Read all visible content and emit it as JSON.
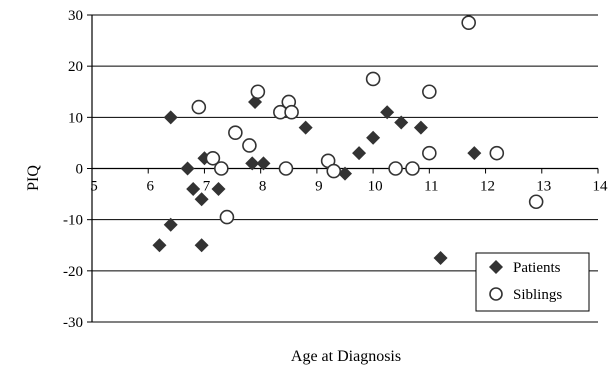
{
  "chart_data": {
    "type": "scatter",
    "title": "",
    "xlabel": "Age at Diagnosis",
    "ylabel": "PIQ",
    "xlim": [
      5,
      14
    ],
    "ylim": [
      -30,
      30
    ],
    "x_ticks": [
      "5",
      "6",
      "7",
      "8",
      "9",
      "10",
      "11",
      "12",
      "13",
      "14"
    ],
    "y_ticks": [
      "30",
      "20",
      "10",
      "0",
      "-10",
      "-20",
      "-30"
    ],
    "grid": "horizontal",
    "legend_position": "bottom-right",
    "series": [
      {
        "name": "Patients",
        "marker": "diamond-filled",
        "color": "#333333",
        "points": [
          [
            6.2,
            -15
          ],
          [
            6.4,
            -11
          ],
          [
            6.4,
            10
          ],
          [
            6.7,
            0
          ],
          [
            6.8,
            -4
          ],
          [
            6.95,
            -6
          ],
          [
            6.95,
            -15
          ],
          [
            7.0,
            2
          ],
          [
            7.25,
            -4
          ],
          [
            7.85,
            1
          ],
          [
            7.9,
            13
          ],
          [
            8.05,
            1
          ],
          [
            8.8,
            8
          ],
          [
            9.5,
            -1
          ],
          [
            9.75,
            3
          ],
          [
            10.0,
            6
          ],
          [
            10.25,
            11
          ],
          [
            10.5,
            9
          ],
          [
            10.85,
            8
          ],
          [
            11.2,
            -17.5
          ],
          [
            11.8,
            3
          ]
        ]
      },
      {
        "name": "Siblings",
        "marker": "circle-open",
        "color": "#333333",
        "points": [
          [
            6.9,
            12
          ],
          [
            7.15,
            2
          ],
          [
            7.3,
            0
          ],
          [
            7.4,
            -9.5
          ],
          [
            7.55,
            7
          ],
          [
            7.8,
            4.5
          ],
          [
            7.95,
            15
          ],
          [
            8.35,
            11
          ],
          [
            8.45,
            0
          ],
          [
            8.5,
            13
          ],
          [
            8.55,
            11
          ],
          [
            9.2,
            1.5
          ],
          [
            9.3,
            -0.5
          ],
          [
            10.0,
            17.5
          ],
          [
            10.4,
            0
          ],
          [
            10.7,
            0
          ],
          [
            11.0,
            3
          ],
          [
            11.0,
            15
          ],
          [
            11.7,
            28.5
          ],
          [
            12.2,
            3
          ],
          [
            12.9,
            -6.5
          ]
        ]
      }
    ]
  }
}
